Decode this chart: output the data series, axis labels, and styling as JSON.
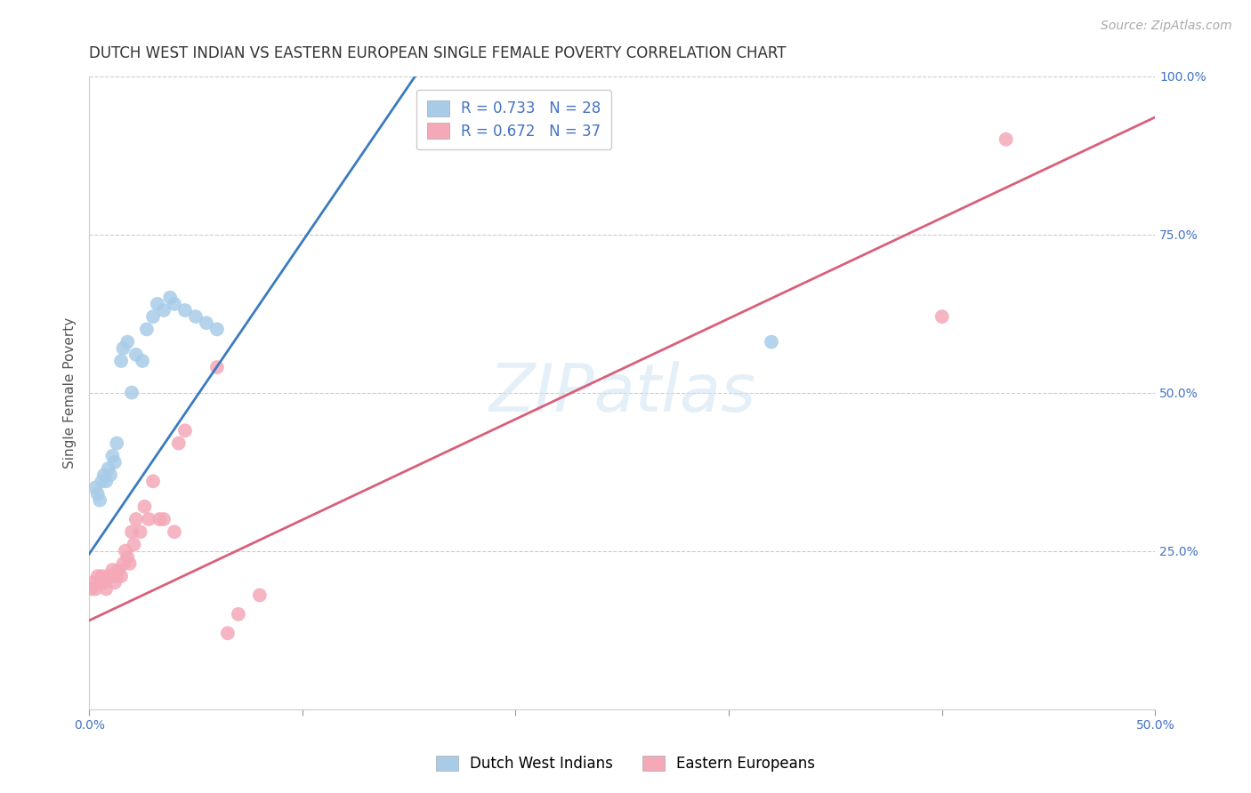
{
  "title": "DUTCH WEST INDIAN VS EASTERN EUROPEAN SINGLE FEMALE POVERTY CORRELATION CHART",
  "source": "Source: ZipAtlas.com",
  "ylabel": "Single Female Poverty",
  "xmin": 0.0,
  "xmax": 0.5,
  "ymin": 0.0,
  "ymax": 1.0,
  "xticks": [
    0.0,
    0.1,
    0.2,
    0.3,
    0.4,
    0.5
  ],
  "xtick_labels_show": [
    "0.0%",
    "",
    "",
    "",
    "",
    "50.0%"
  ],
  "yticks": [
    0.0,
    0.25,
    0.5,
    0.75,
    1.0
  ],
  "ytick_labels": [
    "",
    "25.0%",
    "50.0%",
    "75.0%",
    "100.0%"
  ],
  "blue_R": "0.733",
  "blue_N": "28",
  "pink_R": "0.672",
  "pink_N": "37",
  "blue_label": "Dutch West Indians",
  "pink_label": "Eastern Europeans",
  "blue_color": "#a8cce8",
  "pink_color": "#f4a8b8",
  "blue_line_color": "#3a7bbf",
  "pink_line_color": "#d95f7a",
  "watermark": "ZIPatlas",
  "background_color": "#ffffff",
  "grid_color": "#cccccc",
  "blue_scatter_x": [
    0.003,
    0.004,
    0.005,
    0.006,
    0.007,
    0.008,
    0.009,
    0.01,
    0.011,
    0.012,
    0.013,
    0.015,
    0.016,
    0.018,
    0.02,
    0.022,
    0.025,
    0.027,
    0.03,
    0.032,
    0.035,
    0.038,
    0.04,
    0.045,
    0.05,
    0.055,
    0.06,
    0.32
  ],
  "blue_scatter_y": [
    0.35,
    0.34,
    0.33,
    0.36,
    0.37,
    0.36,
    0.38,
    0.37,
    0.4,
    0.39,
    0.42,
    0.55,
    0.57,
    0.58,
    0.5,
    0.56,
    0.55,
    0.6,
    0.62,
    0.64,
    0.63,
    0.65,
    0.64,
    0.63,
    0.62,
    0.61,
    0.6,
    0.58
  ],
  "pink_scatter_x": [
    0.001,
    0.002,
    0.003,
    0.004,
    0.005,
    0.006,
    0.007,
    0.008,
    0.009,
    0.01,
    0.011,
    0.012,
    0.013,
    0.014,
    0.015,
    0.016,
    0.017,
    0.018,
    0.019,
    0.02,
    0.021,
    0.022,
    0.024,
    0.026,
    0.028,
    0.03,
    0.033,
    0.035,
    0.04,
    0.042,
    0.045,
    0.06,
    0.065,
    0.07,
    0.08,
    0.4,
    0.43
  ],
  "pink_scatter_y": [
    0.19,
    0.2,
    0.19,
    0.21,
    0.2,
    0.21,
    0.2,
    0.19,
    0.21,
    0.21,
    0.22,
    0.2,
    0.21,
    0.22,
    0.21,
    0.23,
    0.25,
    0.24,
    0.23,
    0.28,
    0.26,
    0.3,
    0.28,
    0.32,
    0.3,
    0.36,
    0.3,
    0.3,
    0.28,
    0.42,
    0.44,
    0.54,
    0.12,
    0.15,
    0.18,
    0.62,
    0.9
  ],
  "blue_line_x": [
    0.0,
    0.155
  ],
  "blue_line_y": [
    0.245,
    1.01
  ],
  "pink_line_x": [
    0.0,
    0.5
  ],
  "pink_line_y": [
    0.14,
    0.935
  ],
  "title_fontsize": 12,
  "axis_label_fontsize": 11,
  "tick_fontsize": 10,
  "legend_fontsize": 12,
  "source_fontsize": 10
}
